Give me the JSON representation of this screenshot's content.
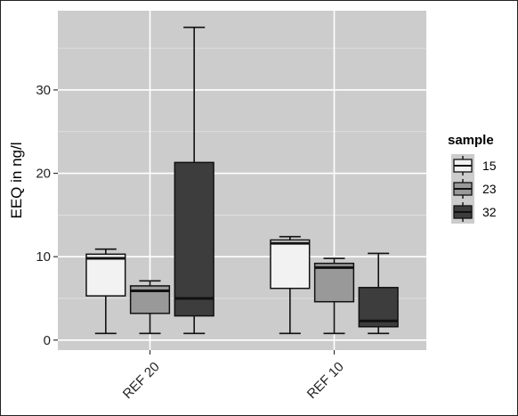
{
  "chart_data": {
    "type": "boxplot",
    "title": "",
    "xlabel": "",
    "ylabel": "EEQ in ng/l",
    "ylim": [
      -1.2,
      39.5
    ],
    "yticks": [
      0,
      10,
      20,
      30
    ],
    "categories": [
      "REF 20",
      "REF 10"
    ],
    "legend": {
      "title": "sample",
      "position": "right"
    },
    "grid": true,
    "series": [
      {
        "name": "15",
        "color": "#f2f2f2",
        "boxes": [
          {
            "min": 0.8,
            "q1": 5.3,
            "median": 9.8,
            "q3": 10.3,
            "max": 10.9
          },
          {
            "min": 0.8,
            "q1": 6.2,
            "median": 11.6,
            "q3": 12.0,
            "max": 12.4
          }
        ]
      },
      {
        "name": "23",
        "color": "#999999",
        "boxes": [
          {
            "min": 0.8,
            "q1": 3.2,
            "median": 5.9,
            "q3": 6.5,
            "max": 7.1
          },
          {
            "min": 0.8,
            "q1": 4.6,
            "median": 8.7,
            "q3": 9.2,
            "max": 9.8
          }
        ]
      },
      {
        "name": "32",
        "color": "#3d3d3d",
        "boxes": [
          {
            "min": 0.8,
            "q1": 2.9,
            "median": 5.0,
            "q3": 21.3,
            "max": 37.5
          },
          {
            "min": 0.8,
            "q1": 1.6,
            "median": 2.3,
            "q3": 6.3,
            "max": 10.4
          }
        ]
      }
    ]
  }
}
